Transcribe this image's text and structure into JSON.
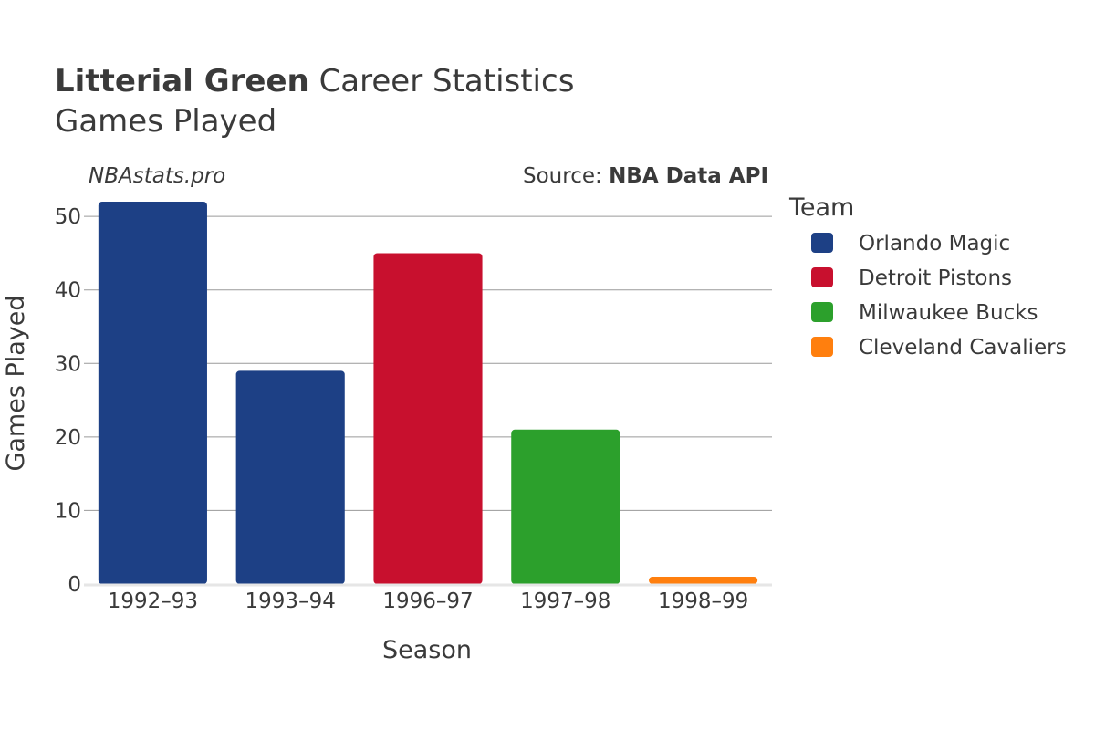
{
  "header": {
    "player": "Litterial Green",
    "title_rest": "Career Statistics",
    "subtitle": "Games Played",
    "watermark": "NBAstats.pro",
    "source_prefix": "Source: ",
    "source_name": "NBA Data API"
  },
  "chart_data": {
    "type": "bar",
    "title": "Litterial Green Career Statistics",
    "subtitle": "Games Played",
    "xlabel": "Season",
    "ylabel": "Games Played",
    "ylim": [
      0,
      53
    ],
    "yticks": [
      0,
      10,
      20,
      30,
      40,
      50
    ],
    "grid": true,
    "categories": [
      "1992–93",
      "1993–94",
      "1996–97",
      "1997–98",
      "1998–99"
    ],
    "values": [
      52,
      29,
      45,
      21,
      1
    ],
    "bar_teams": [
      "Orlando Magic",
      "Orlando Magic",
      "Detroit Pistons",
      "Milwaukee Bucks",
      "Cleveland Cavaliers"
    ],
    "legend_title": "Team",
    "legend_placement": "right",
    "legend": [
      {
        "name": "Orlando Magic",
        "color": "#1d4085"
      },
      {
        "name": "Detroit Pistons",
        "color": "#c8102e"
      },
      {
        "name": "Milwaukee Bucks",
        "color": "#2ca02c"
      },
      {
        "name": "Cleveland Cavaliers",
        "color": "#ff7f0e"
      }
    ]
  }
}
